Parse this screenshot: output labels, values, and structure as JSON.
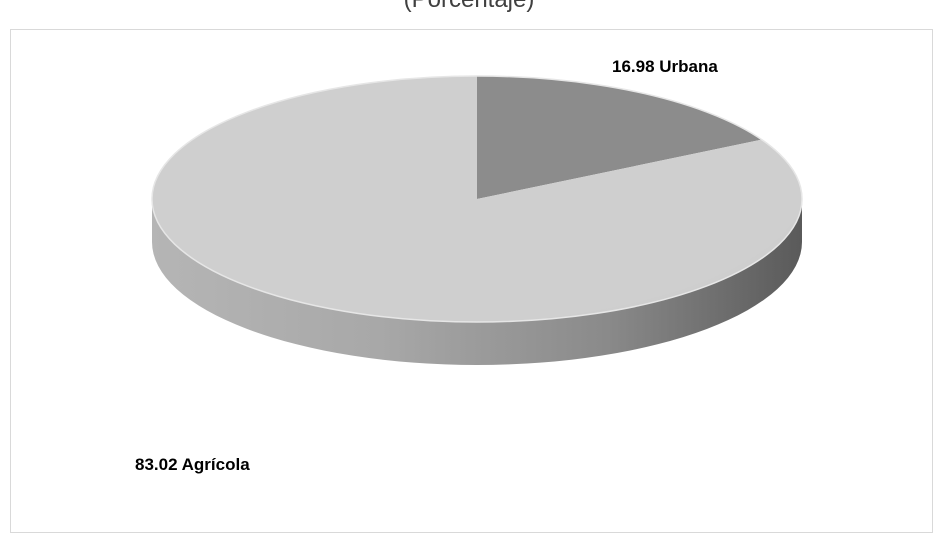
{
  "chart_data": {
    "type": "pie",
    "title": "(Porcentaje)",
    "slices": [
      {
        "name": "Urbana",
        "value": 16.98,
        "label": "16.98 Urbana",
        "color": "#8c8c8c"
      },
      {
        "name": "Agrícola",
        "value": 83.02,
        "label": "83.02 Agrícola",
        "color": "#cccccc"
      }
    ],
    "three_d": true,
    "legend": "none"
  }
}
